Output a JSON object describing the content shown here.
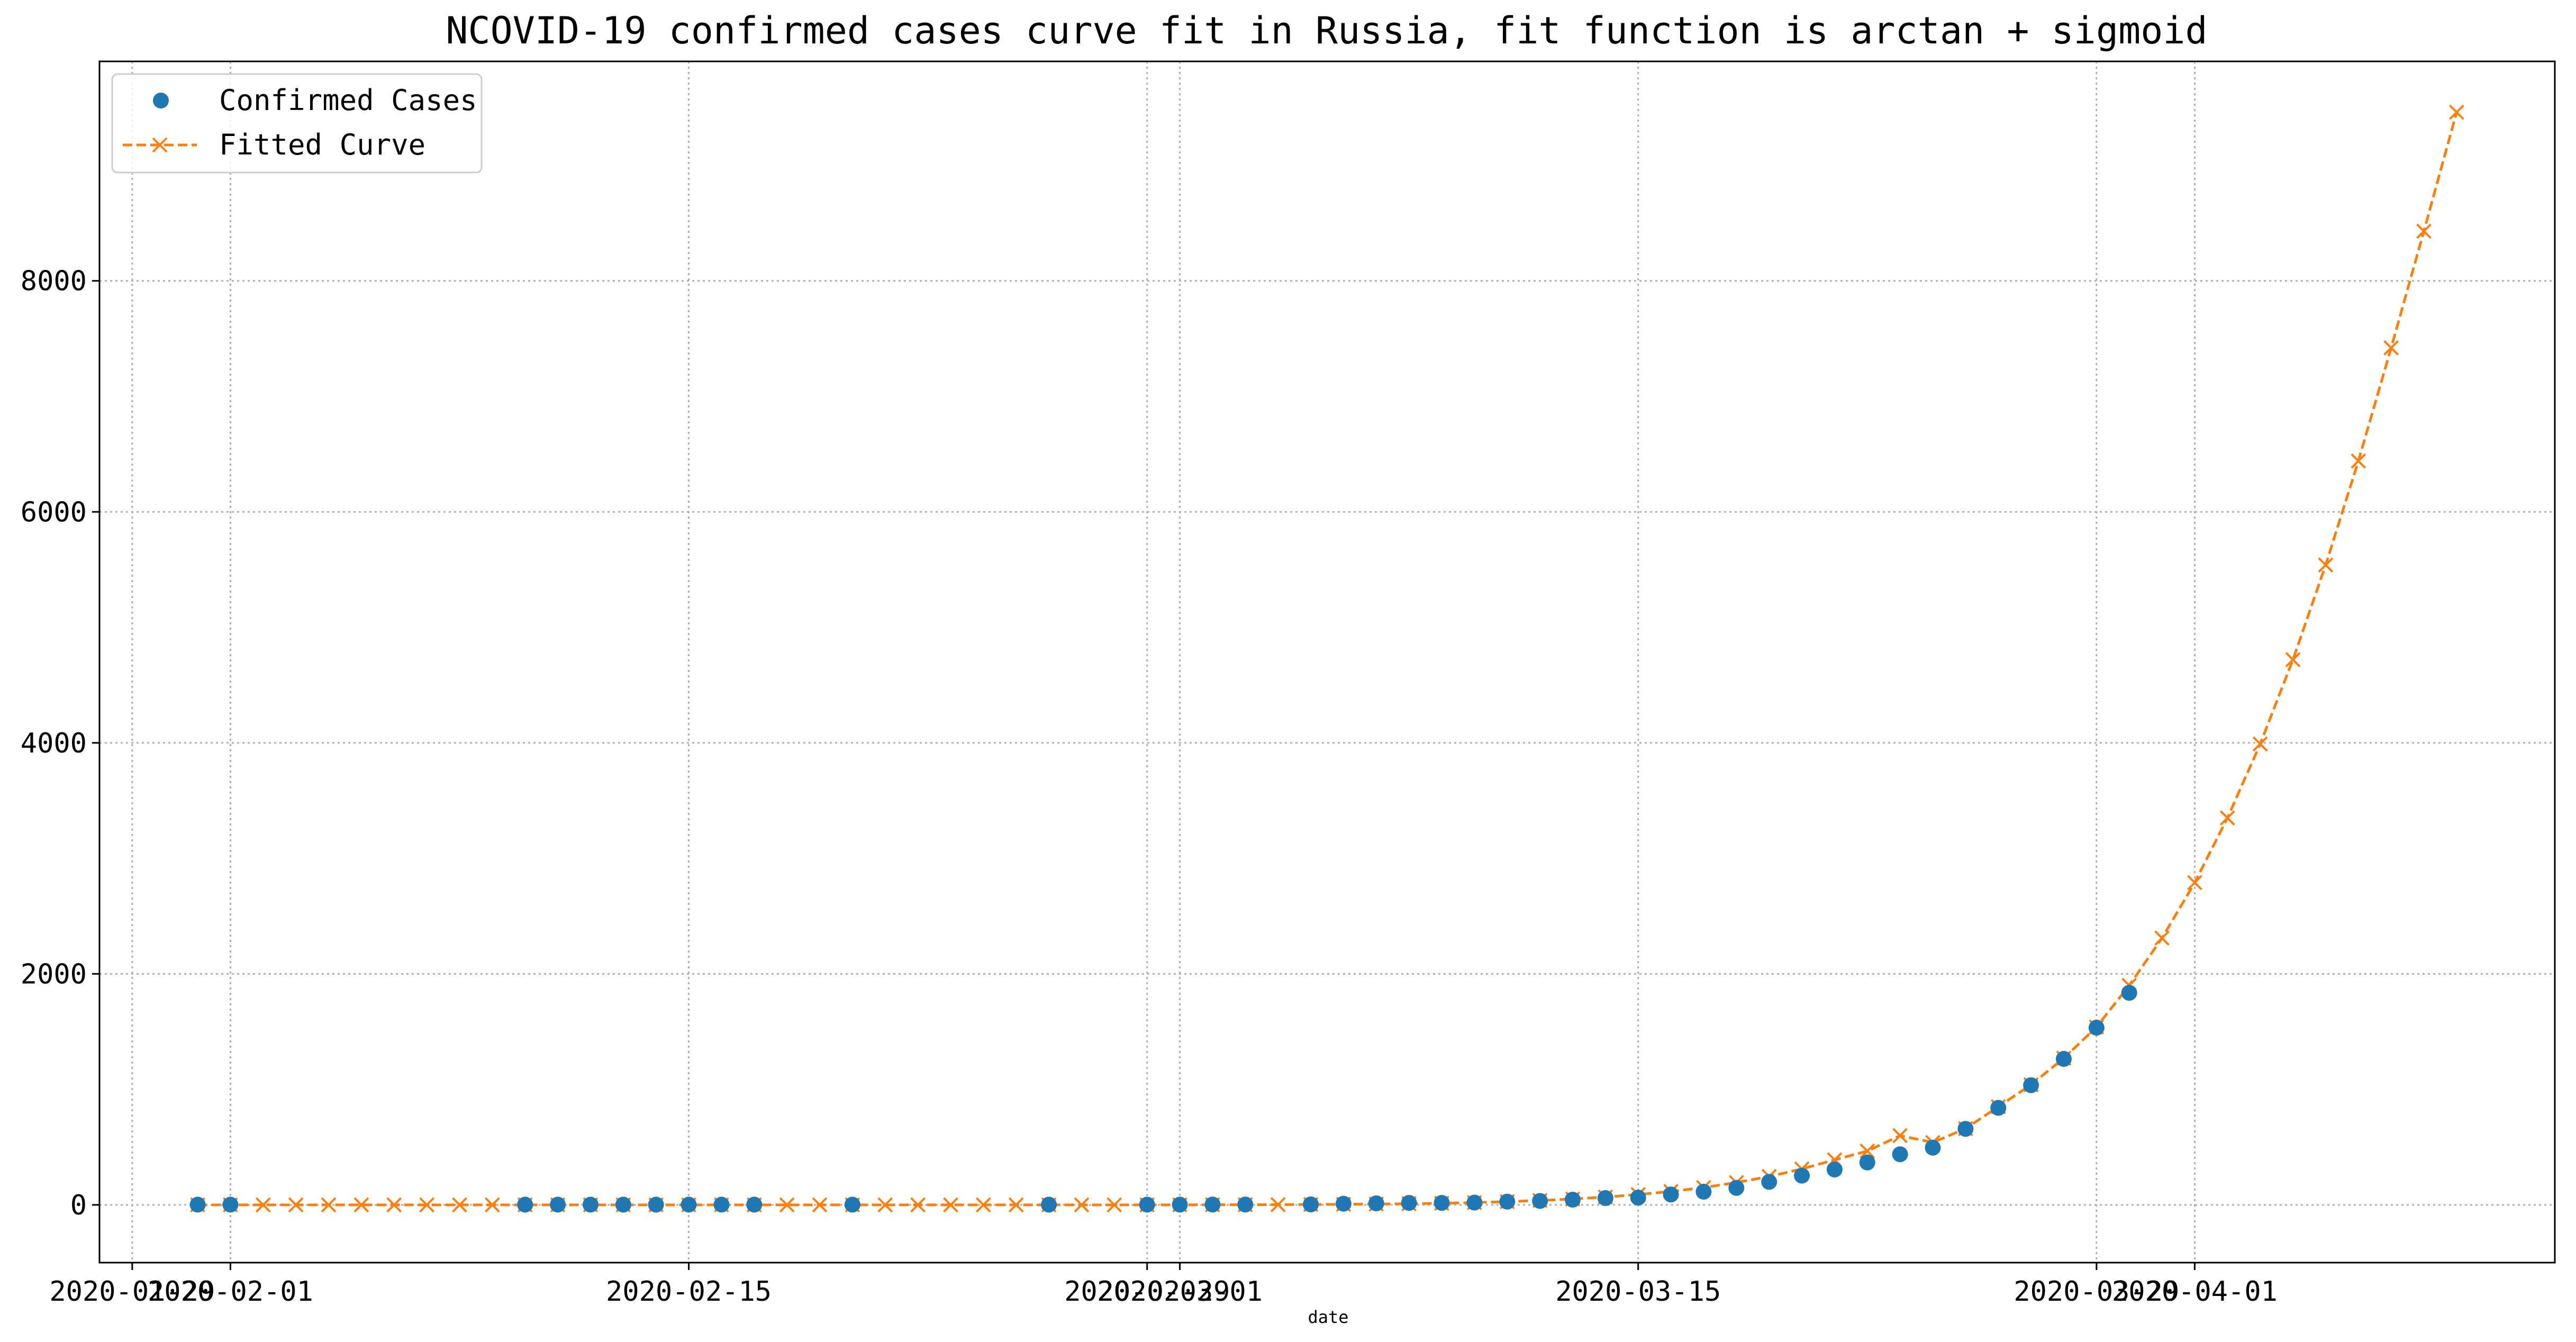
{
  "chart_data": {
    "type": "line",
    "title": "NCOVID-19 confirmed cases curve fit in Russia, fit function is arctan + sigmoid",
    "xlabel": "date",
    "ylabel": "",
    "x_axis": {
      "type": "date",
      "range": [
        "2020-01-28",
        "2020-04-12"
      ],
      "tick_labels": [
        {
          "date": "2020-01-29",
          "label": "2020-01-29"
        },
        {
          "date": "2020-02-01",
          "label": "2020-02-01"
        },
        {
          "date": "2020-02-15",
          "label": "2020-02-15"
        },
        {
          "date": "2020-02-29",
          "label": "2020-02-29"
        },
        {
          "date": "2020-03-01",
          "label": "2020-03-01"
        },
        {
          "date": "2020-03-15",
          "label": "2020-03-15"
        },
        {
          "date": "2020-03-29",
          "label": "2020-03-29"
        },
        {
          "date": "2020-04-01",
          "label": "2020-04-01"
        }
      ]
    },
    "y_axis": {
      "range": [
        -500,
        9900
      ],
      "ticks": [
        0,
        2000,
        4000,
        6000,
        8000
      ],
      "tick_labels": [
        "0",
        "2000",
        "4000",
        "6000",
        "8000"
      ]
    },
    "grid": true,
    "legend": {
      "placement": "top-left"
    },
    "series": [
      {
        "name": "Confirmed Cases",
        "style": "markers",
        "marker": "circle",
        "color": "#1f77b4",
        "points": [
          [
            "2020-01-31",
            2
          ],
          [
            "2020-02-01",
            2
          ],
          [
            "2020-02-10",
            2
          ],
          [
            "2020-02-11",
            2
          ],
          [
            "2020-02-12",
            2
          ],
          [
            "2020-02-13",
            2
          ],
          [
            "2020-02-14",
            2
          ],
          [
            "2020-02-15",
            2
          ],
          [
            "2020-02-16",
            2
          ],
          [
            "2020-02-17",
            2
          ],
          [
            "2020-02-20",
            2
          ],
          [
            "2020-02-26",
            2
          ],
          [
            "2020-02-29",
            2
          ],
          [
            "2020-03-01",
            2
          ],
          [
            "2020-03-02",
            3
          ],
          [
            "2020-03-03",
            3
          ],
          [
            "2020-03-05",
            4
          ],
          [
            "2020-03-06",
            10
          ],
          [
            "2020-03-07",
            13
          ],
          [
            "2020-03-08",
            17
          ],
          [
            "2020-03-09",
            17
          ],
          [
            "2020-03-10",
            20
          ],
          [
            "2020-03-11",
            28
          ],
          [
            "2020-03-12",
            34
          ],
          [
            "2020-03-13",
            45
          ],
          [
            "2020-03-14",
            59
          ],
          [
            "2020-03-15",
            63
          ],
          [
            "2020-03-16",
            90
          ],
          [
            "2020-03-17",
            114
          ],
          [
            "2020-03-18",
            147
          ],
          [
            "2020-03-19",
            199
          ],
          [
            "2020-03-20",
            253
          ],
          [
            "2020-03-21",
            306
          ],
          [
            "2020-03-22",
            367
          ],
          [
            "2020-03-23",
            438
          ],
          [
            "2020-03-24",
            495
          ],
          [
            "2020-03-25",
            658
          ],
          [
            "2020-03-26",
            840
          ],
          [
            "2020-03-27",
            1036
          ],
          [
            "2020-03-28",
            1264
          ],
          [
            "2020-03-29",
            1534
          ],
          [
            "2020-03-30",
            1836
          ]
        ]
      },
      {
        "name": "Fitted Curve",
        "style": "dashed-line-with-x-markers",
        "marker": "x",
        "color": "#ff7f0e",
        "points": [
          [
            "2020-01-31",
            0
          ],
          [
            "2020-02-01",
            0
          ],
          [
            "2020-02-02",
            0
          ],
          [
            "2020-02-03",
            0
          ],
          [
            "2020-02-04",
            0
          ],
          [
            "2020-02-05",
            0
          ],
          [
            "2020-02-06",
            0
          ],
          [
            "2020-02-07",
            0
          ],
          [
            "2020-02-08",
            0
          ],
          [
            "2020-02-09",
            0
          ],
          [
            "2020-02-10",
            0
          ],
          [
            "2020-02-11",
            0
          ],
          [
            "2020-02-12",
            0
          ],
          [
            "2020-02-13",
            0
          ],
          [
            "2020-02-14",
            0
          ],
          [
            "2020-02-15",
            0
          ],
          [
            "2020-02-16",
            0
          ],
          [
            "2020-02-17",
            0
          ],
          [
            "2020-02-18",
            0
          ],
          [
            "2020-02-19",
            0
          ],
          [
            "2020-02-20",
            0
          ],
          [
            "2020-02-21",
            0
          ],
          [
            "2020-02-22",
            0
          ],
          [
            "2020-02-23",
            0
          ],
          [
            "2020-02-24",
            0
          ],
          [
            "2020-02-25",
            0
          ],
          [
            "2020-02-26",
            0
          ],
          [
            "2020-02-27",
            0
          ],
          [
            "2020-02-28",
            0
          ],
          [
            "2020-02-29",
            0
          ],
          [
            "2020-03-01",
            0
          ],
          [
            "2020-03-02",
            1
          ],
          [
            "2020-03-03",
            1
          ],
          [
            "2020-03-04",
            2
          ],
          [
            "2020-03-05",
            3
          ],
          [
            "2020-03-06",
            5
          ],
          [
            "2020-03-07",
            7
          ],
          [
            "2020-03-08",
            10
          ],
          [
            "2020-03-09",
            14
          ],
          [
            "2020-03-10",
            20
          ],
          [
            "2020-03-11",
            28
          ],
          [
            "2020-03-12",
            38
          ],
          [
            "2020-03-13",
            51
          ],
          [
            "2020-03-14",
            68
          ],
          [
            "2020-03-15",
            89
          ],
          [
            "2020-03-16",
            116
          ],
          [
            "2020-03-17",
            150
          ],
          [
            "2020-03-18",
            193
          ],
          [
            "2020-03-19",
            246
          ],
          [
            "2020-03-20",
            311
          ],
          [
            "2020-03-21",
            390
          ],
          [
            "2020-03-22",
            466
          ],
          [
            "2020-03-23",
            600
          ],
          [
            "2020-03-24",
            540
          ],
          [
            "2020-03-25",
            660
          ],
          [
            "2020-03-26",
            850
          ],
          [
            "2020-03-27",
            1040
          ],
          [
            "2020-03-28",
            1270
          ],
          [
            "2020-03-29",
            1540
          ],
          [
            "2020-03-30",
            1900
          ],
          [
            "2020-03-31",
            2310
          ],
          [
            "2020-04-01",
            2790
          ],
          [
            "2020-04-02",
            3350
          ],
          [
            "2020-04-03",
            3990
          ],
          [
            "2020-04-04",
            4720
          ],
          [
            "2020-04-05",
            5540
          ],
          [
            "2020-04-06",
            6440
          ],
          [
            "2020-04-07",
            7420
          ],
          [
            "2020-04-08",
            8430
          ],
          [
            "2020-04-09",
            9460
          ]
        ]
      }
    ]
  }
}
